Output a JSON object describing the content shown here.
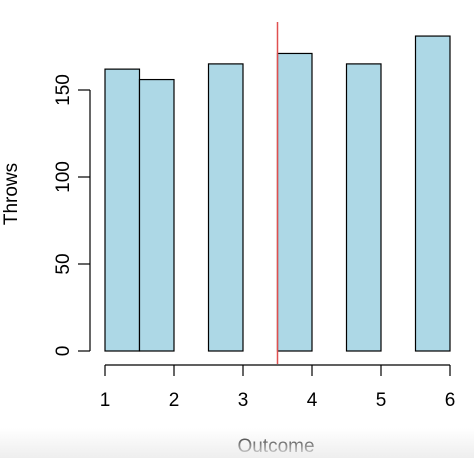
{
  "chart_data": {
    "type": "bar",
    "title": "",
    "xlabel": "Outcome",
    "ylabel": "Throws",
    "bars": [
      {
        "x0": 1.0,
        "x1": 1.5,
        "value": 162
      },
      {
        "x0": 1.5,
        "x1": 2.0,
        "value": 156
      },
      {
        "x0": 2.5,
        "x1": 3.0,
        "value": 165
      },
      {
        "x0": 3.5,
        "x1": 4.0,
        "value": 171
      },
      {
        "x0": 4.5,
        "x1": 5.0,
        "value": 165
      },
      {
        "x0": 5.5,
        "x1": 6.0,
        "value": 181
      }
    ],
    "xlim": [
      1,
      6
    ],
    "ylim": [
      0,
      190
    ],
    "xticks": [
      1,
      2,
      3,
      4,
      5,
      6
    ],
    "yticks": [
      0,
      50,
      100,
      150
    ],
    "reference_line": {
      "x": 3.5,
      "color": "#e05050"
    },
    "bar_color": "#add8e6",
    "grid": false,
    "legend": "none"
  }
}
